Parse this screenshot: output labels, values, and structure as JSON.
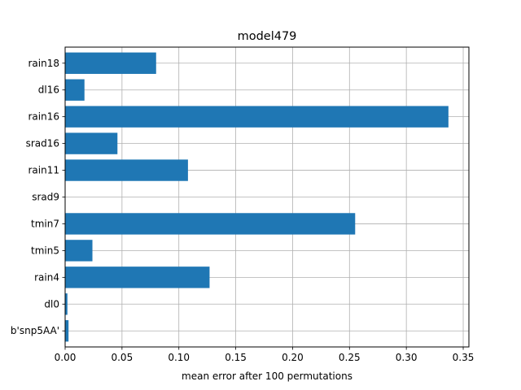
{
  "chart_data": {
    "type": "bar",
    "orientation": "horizontal",
    "title": "model479",
    "xlabel": "mean error after 100 permutations",
    "ylabel": "",
    "categories": [
      "b'snp5AA'",
      "dl0",
      "rain4",
      "tmin5",
      "tmin7",
      "srad9",
      "rain11",
      "srad16",
      "rain16",
      "dl16",
      "rain18"
    ],
    "values": [
      0.003,
      0.002,
      0.127,
      0.024,
      0.255,
      0.0,
      0.108,
      0.046,
      0.337,
      0.017,
      0.08
    ],
    "xlim": [
      0,
      0.355
    ],
    "xticks": [
      0.0,
      0.05,
      0.1,
      0.15,
      0.2,
      0.25,
      0.3,
      0.35
    ],
    "xtick_labels": [
      "0.00",
      "0.05",
      "0.10",
      "0.15",
      "0.20",
      "0.25",
      "0.30",
      "0.35"
    ],
    "grid": true,
    "bar_color": "#1f77b4",
    "grid_color": "#b0b0b0"
  }
}
